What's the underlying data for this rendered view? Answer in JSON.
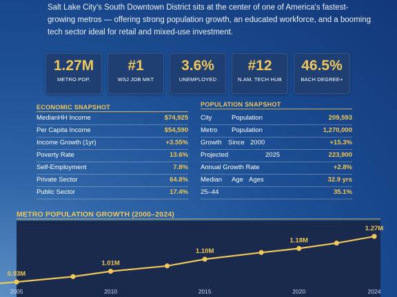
{
  "intro": {
    "text": "Salt Lake City's South Downtown District sits at the center of one of America's fastest-growing metros — offering strong population growth, an educated workforce, and a booming tech sector ideal for retail and mixed-use investment."
  },
  "kpis": [
    {
      "value": "1.27M",
      "label": "METRO POP."
    },
    {
      "value": "#1",
      "label": "WSJ JOB MKT"
    },
    {
      "value": "3.6%",
      "label": "UNEMPLOYED"
    },
    {
      "value": "#12",
      "label": "N.AM. TECH HUB"
    },
    {
      "value": "46.5%",
      "label": "BACH DEGREE+"
    }
  ],
  "economic": {
    "title": "ECONOMIC SNAPSHOT",
    "rows": [
      {
        "label": "MedianHH Income",
        "value": "$74,925"
      },
      {
        "label": "Per Capita Income",
        "value": "$54,590"
      },
      {
        "label": "Income Growth (1yr)",
        "value": "+3.55%"
      },
      {
        "label": "Poverty Rate",
        "value": "13.6%"
      },
      {
        "label": "Self-Employment",
        "value": "7.8%"
      },
      {
        "label": "Private Sector",
        "value": "64.8%"
      },
      {
        "label": "Public Sector",
        "value": "17.4%"
      }
    ]
  },
  "population": {
    "title": "POPULATION SNAPSHOT",
    "rows": [
      {
        "a": "City",
        "b": "Population",
        "value": "209,593"
      },
      {
        "a": "Metro",
        "b": "Population",
        "value": "1,270,000"
      },
      {
        "a": "Growth",
        "b": "Since",
        "c": "2000",
        "value": "+15.3%"
      },
      {
        "a": "Projected",
        "b": "2025",
        "value": "223,900"
      },
      {
        "a": "Annual Growth Rate",
        "value": "+2.8%"
      },
      {
        "a": "Median",
        "b": "Age",
        "c": "Ages",
        "value": "32.9 yrs"
      },
      {
        "a": "25–44",
        "value": "35.1%"
      }
    ]
  },
  "chart": {
    "title": "METRO POPULATION GROWTH (2000–2024)"
  },
  "chart_data": {
    "type": "line",
    "title": "METRO POPULATION GROWTH (2000–2024)",
    "x": [
      2005,
      2008,
      2010,
      2013,
      2015,
      2018,
      2020,
      2022,
      2024
    ],
    "values": [
      0.93,
      0.97,
      1.01,
      1.05,
      1.1,
      1.15,
      1.18,
      1.22,
      1.27
    ],
    "point_labels": {
      "2005": "0.93M",
      "2010": "1.01M",
      "2015": "1.10M",
      "2020": "1.18M",
      "2024": "1.27M"
    },
    "x_ticks": [
      "2005",
      "2010",
      "2015",
      "2020",
      "2024"
    ],
    "xlabel": "",
    "ylabel": "",
    "xlim": [
      2005,
      2024
    ],
    "ylim": [
      0.9,
      1.3
    ],
    "line_color": "#f0c75a",
    "plot_background": "#1a2a4d"
  }
}
